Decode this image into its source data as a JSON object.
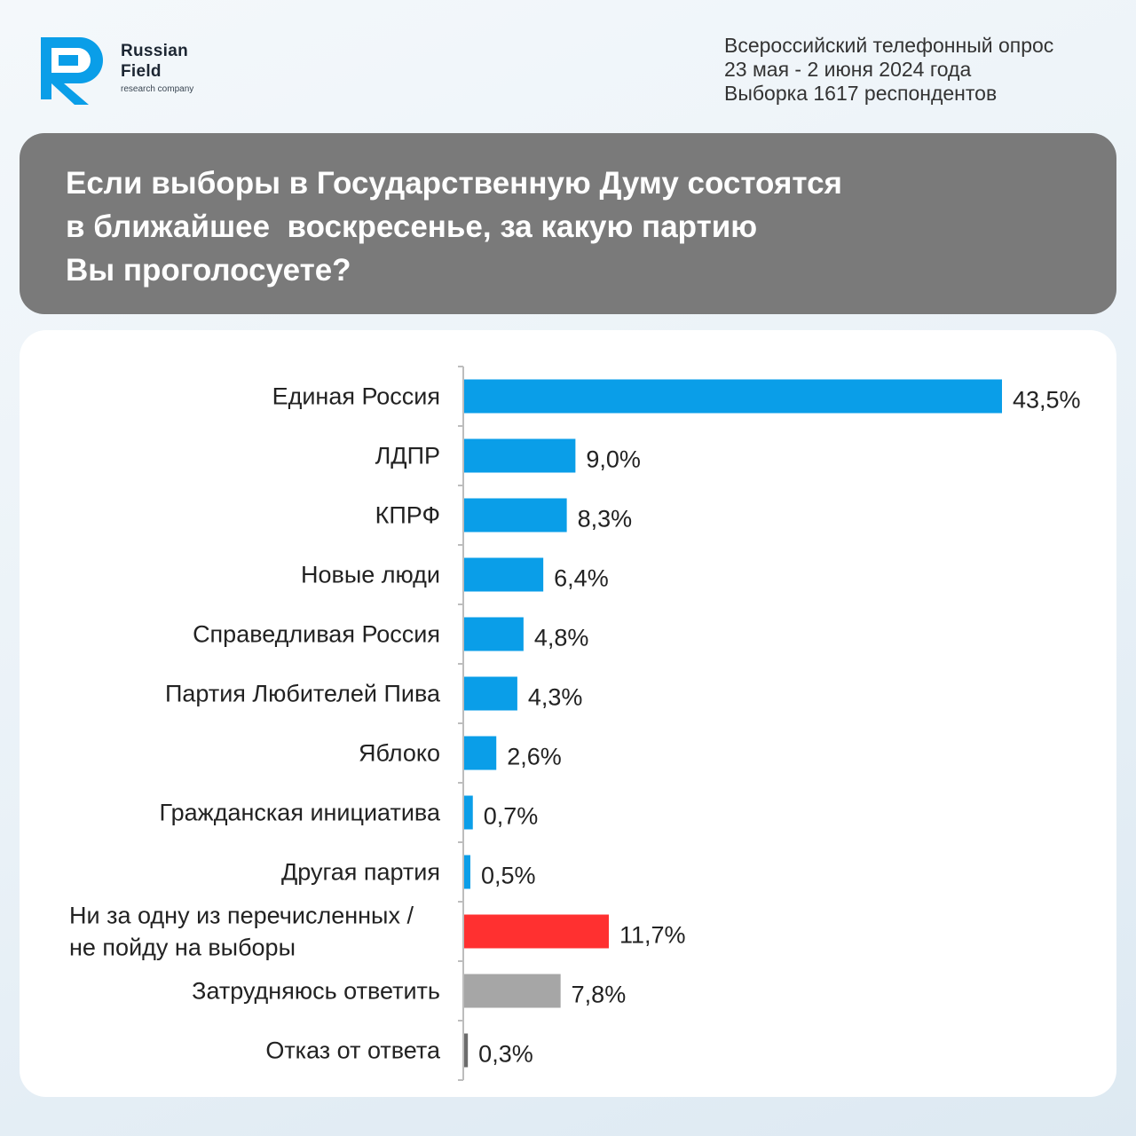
{
  "header": {
    "logo": {
      "name_line1": "Russian",
      "name_line2": "Field",
      "tagline": "research company",
      "brand_color": "#0a9ee8"
    },
    "survey_info": [
      "Всероссийский телефонный опрос",
      "23 мая - 2 июня 2024 года",
      "Выборка 1617 респондентов"
    ]
  },
  "question": {
    "lines": [
      "Если выборы в Государственную Думу состоятся",
      "в ближайшее  воскресенье, за какую партию",
      "Вы проголосуете?"
    ]
  },
  "chart_data": {
    "type": "bar",
    "orientation": "horizontal",
    "title": "",
    "xlabel": "",
    "ylabel": "",
    "xlim": [
      0,
      43.5
    ],
    "value_format": "percent",
    "categories": [
      [
        "Единая Россия"
      ],
      [
        "ЛДПР"
      ],
      [
        "КПРФ"
      ],
      [
        "Новые люди"
      ],
      [
        "Справедливая Россия"
      ],
      [
        "Партия Любителей Пива"
      ],
      [
        "Яблоко"
      ],
      [
        "Гражданская инициатива"
      ],
      [
        "Другая партия"
      ],
      [
        "Ни за одну из перечисленных /",
        "не пойду на выборы"
      ],
      [
        "Затрудняюсь ответить"
      ],
      [
        "Отказ от ответа"
      ]
    ],
    "values": [
      43.5,
      9.0,
      8.3,
      6.4,
      4.8,
      4.3,
      2.6,
      0.7,
      0.5,
      11.7,
      7.8,
      0.3
    ],
    "value_labels": [
      "43,5%",
      "9,0%",
      "8,3%",
      "6,4%",
      "4,8%",
      "4,3%",
      "2,6%",
      "0,7%",
      "0,5%",
      "11,7%",
      "7,8%",
      "0,3%"
    ],
    "colors": [
      "#0a9ee8",
      "#0a9ee8",
      "#0a9ee8",
      "#0a9ee8",
      "#0a9ee8",
      "#0a9ee8",
      "#0a9ee8",
      "#0a9ee8",
      "#0a9ee8",
      "#ff3030",
      "#a6a6a6",
      "#6b6b6b"
    ],
    "axis_color": "#bdbdbd",
    "grid": false,
    "legend": "none"
  }
}
